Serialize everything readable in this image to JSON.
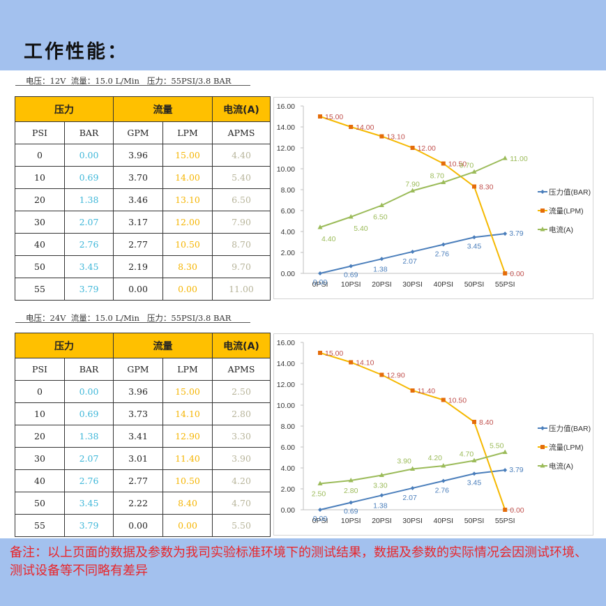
{
  "page": {
    "title": "工作性能：",
    "note": "备注：以上页面的数据及参数为我司实验标准环境下的测试结果，数据及参数的实际情况会因测试环境、测试设备等不同略有差异"
  },
  "colors": {
    "band": "#a3c1ee",
    "header_fill": "#ffc000",
    "bar_text": "#3cb6d8",
    "lpm_text": "#f5b400",
    "amp_text": "#b7b49a",
    "note_text": "#e8262b",
    "series_bar": "#4a7ebb",
    "series_lpm": "#f5b800",
    "series_amp": "#9bbb59",
    "label_bar": "#4a7ebb",
    "label_lpm": "#c0504d",
    "label_amp": "#9bbb59"
  },
  "sections": [
    {
      "params": "电压：12V  流量：15.0 L/Min   压力：55PSI/3.8 BAR",
      "group_headers": [
        "压力",
        "流量",
        "电流(A)"
      ],
      "col_headers": [
        "PSI",
        "BAR",
        "GPM",
        "LPM",
        "APMS"
      ],
      "rows": [
        [
          "0",
          "0.00",
          "3.96",
          "15.00",
          "4.40"
        ],
        [
          "10",
          "0.69",
          "3.70",
          "14.00",
          "5.40"
        ],
        [
          "20",
          "1.38",
          "3.46",
          "13.10",
          "6.50"
        ],
        [
          "30",
          "2.07",
          "3.17",
          "12.00",
          "7.90"
        ],
        [
          "40",
          "2.76",
          "2.77",
          "10.50",
          "8.70"
        ],
        [
          "50",
          "3.45",
          "2.19",
          "8.30",
          "9.70"
        ],
        [
          "55",
          "3.79",
          "0.00",
          "0.00",
          "11.00"
        ]
      ]
    },
    {
      "params": "电压：24V  流量：15.0 L/Min   压力：55PSI/3.8 BAR",
      "group_headers": [
        "压力",
        "流量",
        "电流(A)"
      ],
      "col_headers": [
        "PSI",
        "BAR",
        "GPM",
        "LPM",
        "APMS"
      ],
      "rows": [
        [
          "0",
          "0.00",
          "3.96",
          "15.00",
          "2.50"
        ],
        [
          "10",
          "0.69",
          "3.73",
          "14.10",
          "2.80"
        ],
        [
          "20",
          "1.38",
          "3.41",
          "12.90",
          "3.30"
        ],
        [
          "30",
          "2.07",
          "3.01",
          "11.40",
          "3.90"
        ],
        [
          "40",
          "2.76",
          "2.77",
          "10.50",
          "4.20"
        ],
        [
          "50",
          "3.45",
          "2.22",
          "8.40",
          "4.70"
        ],
        [
          "55",
          "3.79",
          "0.00",
          "0.00",
          "5.50"
        ]
      ]
    }
  ],
  "chart_data": [
    {
      "type": "line",
      "categories": [
        "0PSI",
        "10PSI",
        "20PSI",
        "30PSI",
        "40PSI",
        "50PSI",
        "55PSI"
      ],
      "ylim": [
        0,
        16
      ],
      "yticks": [
        "0.00",
        "2.00",
        "4.00",
        "6.00",
        "8.00",
        "10.00",
        "12.00",
        "14.00",
        "16.00"
      ],
      "legend_position": "right",
      "grid": false,
      "series": [
        {
          "name": "压力值(BAR)",
          "marker": "diamond",
          "values": [
            0.0,
            0.69,
            1.38,
            2.07,
            2.76,
            3.45,
            3.79
          ],
          "labels": [
            "0.00",
            "0.69",
            "1.38",
            "2.07",
            "2.76",
            "3.45",
            "3.79"
          ]
        },
        {
          "name": "流量(LPM)",
          "marker": "square",
          "values": [
            15.0,
            14.0,
            13.1,
            12.0,
            10.5,
            8.3,
            0.0
          ],
          "labels": [
            "15.00",
            "14.00",
            "13.10",
            "12.00",
            "10.50",
            "8.30",
            "0.00"
          ]
        },
        {
          "name": "电流(A)",
          "marker": "triangle",
          "values": [
            4.4,
            5.4,
            6.5,
            7.9,
            8.7,
            9.7,
            11.0
          ],
          "labels": [
            "4.40",
            "5.40",
            "6.50",
            "7.90",
            "8.70",
            "9.70",
            "11.00"
          ]
        }
      ]
    },
    {
      "type": "line",
      "categories": [
        "0PSI",
        "10PSI",
        "20PSI",
        "30PSI",
        "40PSI",
        "50PSI",
        "55PSI"
      ],
      "ylim": [
        0,
        16
      ],
      "yticks": [
        "0.00",
        "2.00",
        "4.00",
        "6.00",
        "8.00",
        "10.00",
        "12.00",
        "14.00",
        "16.00"
      ],
      "legend_position": "right",
      "grid": false,
      "series": [
        {
          "name": "压力值(BAR)",
          "marker": "diamond",
          "values": [
            0.0,
            0.69,
            1.38,
            2.07,
            2.76,
            3.45,
            3.79
          ],
          "labels": [
            "0.00",
            "0.69",
            "1.38",
            "2.07",
            "2.76",
            "3.45",
            "3.79"
          ]
        },
        {
          "name": "流量(LPM)",
          "marker": "square",
          "values": [
            15.0,
            14.1,
            12.9,
            11.4,
            10.5,
            8.4,
            0.0
          ],
          "labels": [
            "15.00",
            "14.10",
            "12.90",
            "11.40",
            "10.50",
            "8.40",
            "0.00"
          ]
        },
        {
          "name": "电流(A)",
          "marker": "triangle",
          "values": [
            2.5,
            2.8,
            3.3,
            3.9,
            4.2,
            4.7,
            5.5
          ],
          "labels": [
            "2.50",
            "2.80",
            "3.30",
            "3.90",
            "4.20",
            "4.70",
            "5.50"
          ]
        }
      ]
    }
  ]
}
